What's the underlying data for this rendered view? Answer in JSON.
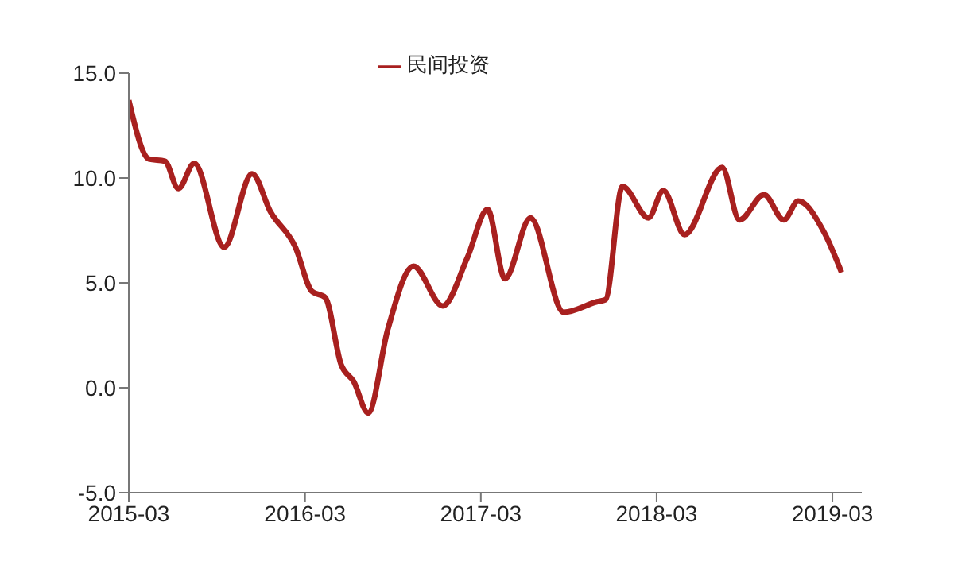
{
  "chart_data": {
    "type": "line",
    "legend": "top",
    "grid": false,
    "marker": "none",
    "line_style": "solid",
    "xlim": [
      "2015-03",
      "2019-05"
    ],
    "xticks": [
      "2015-03",
      "2016-03",
      "2017-03",
      "2018-03",
      "2019-03"
    ],
    "ylim": [
      -5,
      15
    ],
    "yticks": [
      {
        "value": -5,
        "label": "-5.0"
      },
      {
        "value": 0,
        "label": "0.0"
      },
      {
        "value": 5,
        "label": "5.0"
      },
      {
        "value": 10,
        "label": "10.0"
      },
      {
        "value": 15,
        "label": "15.0"
      }
    ],
    "series": [
      {
        "name": "民间投资",
        "color": "#a8201f",
        "x": [
          "2015-03-01",
          "2015-04-12",
          "2015-05-15",
          "2015-06-12",
          "2015-07-15",
          "2015-09-15",
          "2015-11-12",
          "2015-12-20",
          "2016-02-10",
          "2016-03-15",
          "2016-04-12",
          "2016-05-15",
          "2016-06-10",
          "2016-07-10",
          "2016-08-20",
          "2016-10-12",
          "2016-12-12",
          "2017-02-01",
          "2017-03-15",
          "2017-04-20",
          "2017-06-12",
          "2017-08-20",
          "2017-10-28",
          "2017-11-15",
          "2017-12-20",
          "2018-02-12",
          "2018-03-15",
          "2018-04-28",
          "2018-07-15",
          "2018-08-20",
          "2018-10-10",
          "2018-11-20",
          "2018-12-20",
          "2019-02-12",
          "2019-03-20"
        ],
        "values": [
          13.7,
          10.9,
          10.8,
          9.5,
          10.7,
          6.7,
          10.2,
          8.4,
          6.7,
          4.6,
          4.3,
          1.1,
          0.3,
          -1.2,
          2.8,
          5.8,
          3.9,
          6.2,
          8.5,
          5.2,
          8.1,
          3.6,
          4.1,
          4.2,
          9.6,
          8.1,
          9.4,
          7.3,
          10.5,
          8.0,
          9.2,
          8.0,
          8.9,
          7.4,
          5.5
        ]
      }
    ]
  }
}
